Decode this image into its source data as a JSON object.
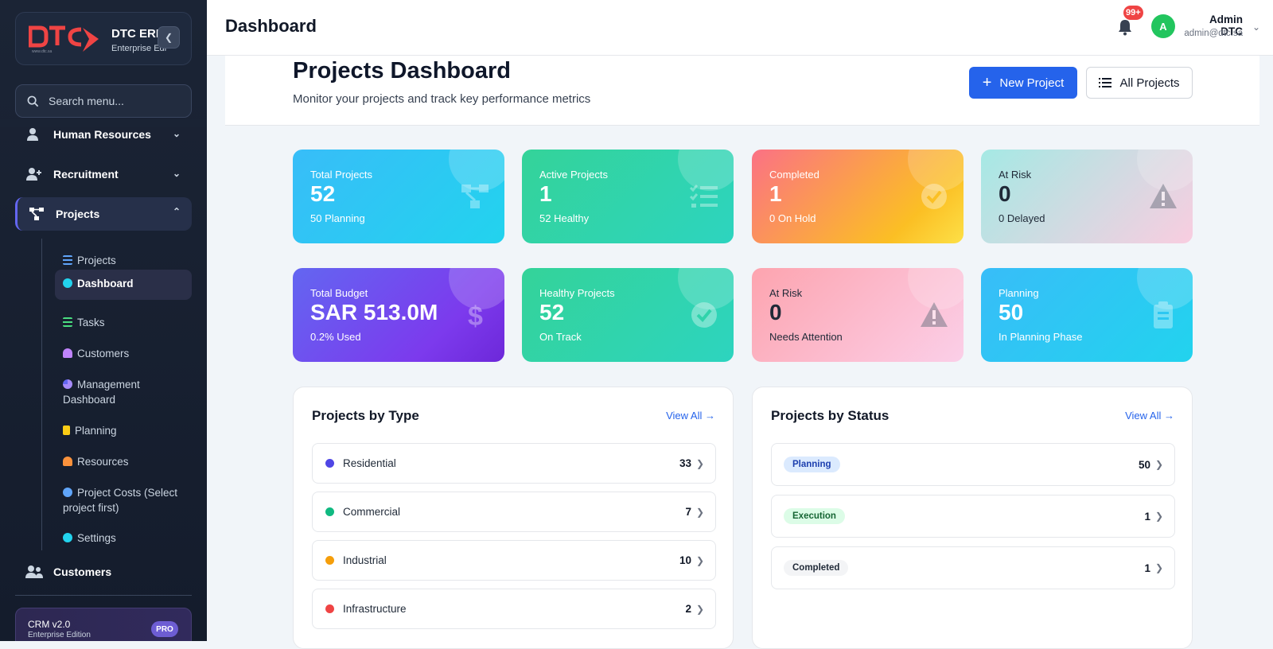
{
  "brand": {
    "name": "DTC ERP",
    "subtitle": "Enterprise Edition"
  },
  "search": {
    "placeholder": "Search menu..."
  },
  "sidebar": {
    "nav": [
      {
        "label": "Human Resources"
      },
      {
        "label": "Recruitment"
      },
      {
        "label": "Projects"
      },
      {
        "label": "Customers"
      }
    ],
    "sub": [
      {
        "label": "Projects"
      },
      {
        "label": "Dashboard"
      },
      {
        "label": "Tasks"
      },
      {
        "label": "Customers"
      },
      {
        "label": "Management Dashboard"
      },
      {
        "label": "Planning"
      },
      {
        "label": "Resources"
      },
      {
        "label": "Project Costs (Select project first)"
      },
      {
        "label": "Settings"
      }
    ],
    "footer": {
      "title": "CRM v2.0",
      "subtitle": "Enterprise Edition",
      "badge": "PRO"
    }
  },
  "topbar": {
    "title": "Dashboard",
    "notifications": "99+",
    "avatar_initial": "A",
    "user_name": "Admin DTC",
    "user_email": "admin@dtc.sa"
  },
  "page": {
    "title": "Projects Dashboard",
    "subtitle": "Monitor your projects and track key performance metrics",
    "new_project": "New Project",
    "all_projects": "All Projects"
  },
  "cards": [
    {
      "label": "Total Projects",
      "value": "52",
      "sub": "50 Planning",
      "icon": "project-diagram-icon"
    },
    {
      "label": "Active Projects",
      "value": "1",
      "sub": "52 Healthy",
      "icon": "task-list-icon"
    },
    {
      "label": "Completed",
      "value": "1",
      "sub": "0 On Hold",
      "icon": "check-circle-icon"
    },
    {
      "label": "At Risk",
      "value": "0",
      "sub": "0 Delayed",
      "icon": "warning-icon"
    },
    {
      "label": "Total Budget",
      "value": "SAR 513.0M",
      "sub": "0.2% Used",
      "icon": "dollar-icon"
    },
    {
      "label": "Healthy Projects",
      "value": "52",
      "sub": "On Track",
      "icon": "check-circle-icon"
    },
    {
      "label": "At Risk",
      "value": "0",
      "sub": "Needs Attention",
      "icon": "warning-icon"
    },
    {
      "label": "Planning",
      "value": "50",
      "sub": "In Planning Phase",
      "icon": "clipboard-icon"
    }
  ],
  "by_type": {
    "title": "Projects by Type",
    "view_all": "View All →",
    "rows": [
      {
        "label": "Residential",
        "value": "33",
        "color": "#4f46e5"
      },
      {
        "label": "Commercial",
        "value": "7",
        "color": "#10b981"
      },
      {
        "label": "Industrial",
        "value": "10",
        "color": "#f59e0b"
      },
      {
        "label": "Infrastructure",
        "value": "2",
        "color": "#ef4444"
      }
    ]
  },
  "by_status": {
    "title": "Projects by Status",
    "view_all": "View All →",
    "rows": [
      {
        "label": "Planning",
        "value": "50",
        "bg": "#dbeafe",
        "fg": "#1e40af"
      },
      {
        "label": "Execution",
        "value": "1",
        "bg": "#dcfce7",
        "fg": "#166534"
      },
      {
        "label": "Completed",
        "value": "1",
        "bg": "#f3f4f6",
        "fg": "#1f2937"
      }
    ]
  }
}
